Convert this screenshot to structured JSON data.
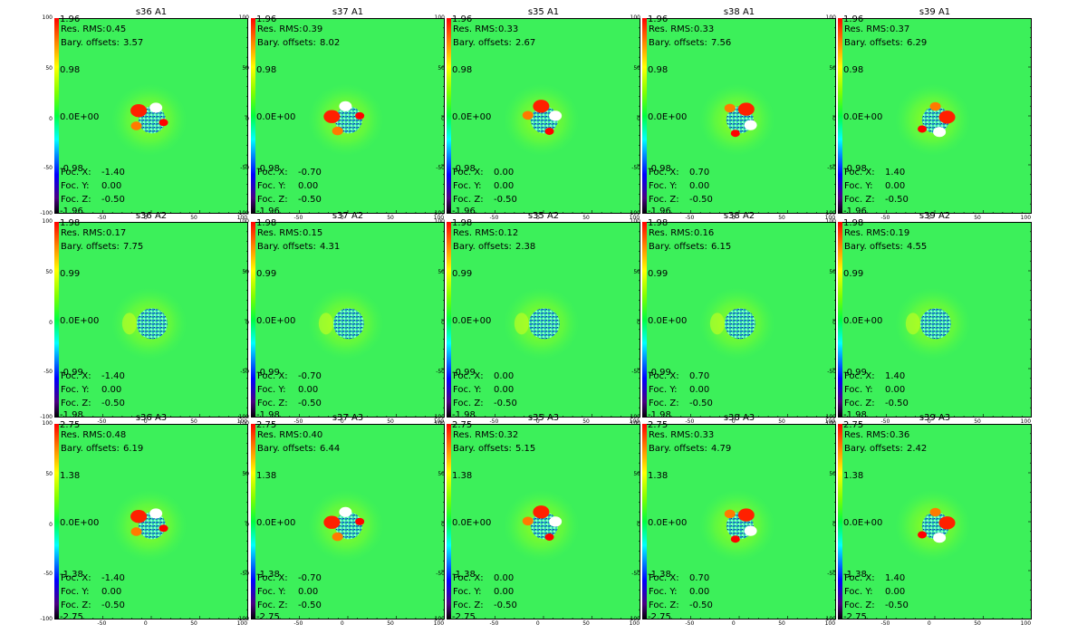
{
  "figure": {
    "x_ticks": [
      "-50",
      "0",
      "50",
      "100"
    ],
    "y_ticks": [
      "100",
      "50",
      "0",
      "-50",
      "-100"
    ],
    "res_rms_label": "Res. RMS:",
    "bary_label": "Bary. offsets:",
    "foc_x_label": "Foc. X:",
    "foc_y_label": "Foc. Y:",
    "foc_z_label": "Foc. Z:",
    "colormap": "rainbow (black-purple-blue-cyan-green-yellow-red-white)"
  },
  "rows": [
    {
      "scale": {
        "top": "1.96",
        "upper": "0.98",
        "mid": "0.0E+00",
        "lower": "-0.98",
        "bottom": "-1.96"
      },
      "panels": [
        {
          "title": "s36 A1",
          "res_rms": "0.45",
          "bary": "3.57",
          "foc_x": "-1.40",
          "foc_y": "0.00",
          "foc_z": "-0.50"
        },
        {
          "title": "s37 A1",
          "res_rms": "0.39",
          "bary": "8.02",
          "foc_x": "-0.70",
          "foc_y": "0.00",
          "foc_z": "-0.50"
        },
        {
          "title": "s35 A1",
          "res_rms": "0.33",
          "bary": "2.67",
          "foc_x": "0.00",
          "foc_y": "0.00",
          "foc_z": "-0.50"
        },
        {
          "title": "s38 A1",
          "res_rms": "0.33",
          "bary": "7.56",
          "foc_x": "0.70",
          "foc_y": "0.00",
          "foc_z": "-0.50"
        },
        {
          "title": "s39 A1",
          "res_rms": "0.37",
          "bary": "6.29",
          "foc_x": "1.40",
          "foc_y": "0.00",
          "foc_z": "-0.50"
        }
      ]
    },
    {
      "scale": {
        "top": "1.98",
        "upper": "0.99",
        "mid": "0.0E+00",
        "lower": "-0.99",
        "bottom": "-1.98"
      },
      "panels": [
        {
          "title": "s36 A2",
          "res_rms": "0.17",
          "bary": "7.75",
          "foc_x": "-1.40",
          "foc_y": "0.00",
          "foc_z": "-0.50"
        },
        {
          "title": "s37 A2",
          "res_rms": "0.15",
          "bary": "4.31",
          "foc_x": "-0.70",
          "foc_y": "0.00",
          "foc_z": "-0.50"
        },
        {
          "title": "s35 A2",
          "res_rms": "0.12",
          "bary": "2.38",
          "foc_x": "0.00",
          "foc_y": "0.00",
          "foc_z": "-0.50"
        },
        {
          "title": "s38 A2",
          "res_rms": "0.16",
          "bary": "6.15",
          "foc_x": "0.70",
          "foc_y": "0.00",
          "foc_z": "-0.50"
        },
        {
          "title": "s39 A2",
          "res_rms": "0.19",
          "bary": "4.55",
          "foc_x": "1.40",
          "foc_y": "0.00",
          "foc_z": "-0.50"
        }
      ]
    },
    {
      "scale": {
        "top": "2.75",
        "upper": "1.38",
        "mid": "0.0E+00",
        "lower": "-1.38",
        "bottom": "-2.75"
      },
      "panels": [
        {
          "title": "s36 A3",
          "res_rms": "0.48",
          "bary": "6.19",
          "foc_x": "-1.40",
          "foc_y": "0.00",
          "foc_z": "-0.50"
        },
        {
          "title": "s37 A3",
          "res_rms": "0.40",
          "bary": "6.44",
          "foc_x": "-0.70",
          "foc_y": "0.00",
          "foc_z": "-0.50"
        },
        {
          "title": "s35 A3",
          "res_rms": "0.32",
          "bary": "5.15",
          "foc_x": "0.00",
          "foc_y": "0.00",
          "foc_z": "-0.50"
        },
        {
          "title": "s38 A3",
          "res_rms": "0.33",
          "bary": "4.79",
          "foc_x": "0.70",
          "foc_y": "0.00",
          "foc_z": "-0.50"
        },
        {
          "title": "s39 A3",
          "res_rms": "0.36",
          "bary": "2.42",
          "foc_x": "1.40",
          "foc_y": "0.00",
          "foc_z": "-0.50"
        }
      ]
    }
  ]
}
